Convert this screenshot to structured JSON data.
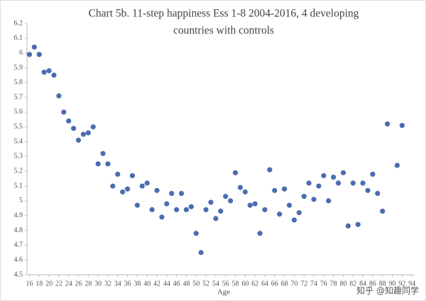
{
  "chart_data": {
    "type": "scatter",
    "title": [
      "Chart 5b. 11-step happiness Ess 1-8 2004-2016, 4 developing",
      "countries with controls"
    ],
    "x_label": "Age",
    "watermark": "知乎 @知趣同学",
    "color": "#4a6db0",
    "x": [
      16,
      17,
      18,
      19,
      20,
      21,
      22,
      23,
      24,
      25,
      26,
      27,
      28,
      29,
      30,
      31,
      32,
      33,
      34,
      35,
      36,
      37,
      38,
      39,
      40,
      41,
      42,
      43,
      44,
      45,
      46,
      47,
      48,
      49,
      50,
      51,
      52,
      53,
      54,
      55,
      56,
      57,
      58,
      59,
      60,
      61,
      62,
      63,
      64,
      65,
      66,
      67,
      68,
      69,
      70,
      71,
      72,
      73,
      74,
      75,
      76,
      77,
      78,
      79,
      80,
      81,
      82,
      83,
      84,
      85,
      86,
      87,
      88,
      89,
      91,
      92
    ],
    "values": [
      5.99,
      6.04,
      5.99,
      5.87,
      5.88,
      5.85,
      5.71,
      5.6,
      5.54,
      5.49,
      5.41,
      5.45,
      5.46,
      5.5,
      5.25,
      5.32,
      5.25,
      5.1,
      5.18,
      5.06,
      5.08,
      5.17,
      4.97,
      5.1,
      5.12,
      4.94,
      5.07,
      4.89,
      4.98,
      5.05,
      4.94,
      5.05,
      4.94,
      4.96,
      4.78,
      4.65,
      4.94,
      4.99,
      4.88,
      4.93,
      5.03,
      5.0,
      5.19,
      5.09,
      5.06,
      4.97,
      4.98,
      4.78,
      4.94,
      5.21,
      5.07,
      4.91,
      5.08,
      4.97,
      4.87,
      4.92,
      5.03,
      5.12,
      5.01,
      5.1,
      5.17,
      5.0,
      5.16,
      5.12,
      5.19,
      4.83,
      5.12,
      4.84,
      5.12,
      5.07,
      5.18,
      5.05,
      4.93,
      5.52,
      5.24,
      5.51
    ],
    "xlim": [
      15.5,
      94.5
    ],
    "xticks": [
      16,
      18,
      20,
      22,
      24,
      26,
      28,
      30,
      32,
      34,
      36,
      38,
      40,
      42,
      44,
      46,
      48,
      50,
      52,
      54,
      56,
      58,
      60,
      62,
      64,
      66,
      68,
      70,
      72,
      74,
      76,
      78,
      80,
      82,
      84,
      86,
      88,
      90,
      92,
      94
    ],
    "ylim": [
      4.5,
      6.2
    ],
    "yticks": [
      4.5,
      4.6,
      4.7,
      4.8,
      4.9,
      5,
      5.1,
      5.2,
      5.3,
      5.4,
      5.5,
      5.6,
      5.7,
      5.8,
      5.9,
      6,
      6.1,
      6.2
    ],
    "grid": false
  }
}
